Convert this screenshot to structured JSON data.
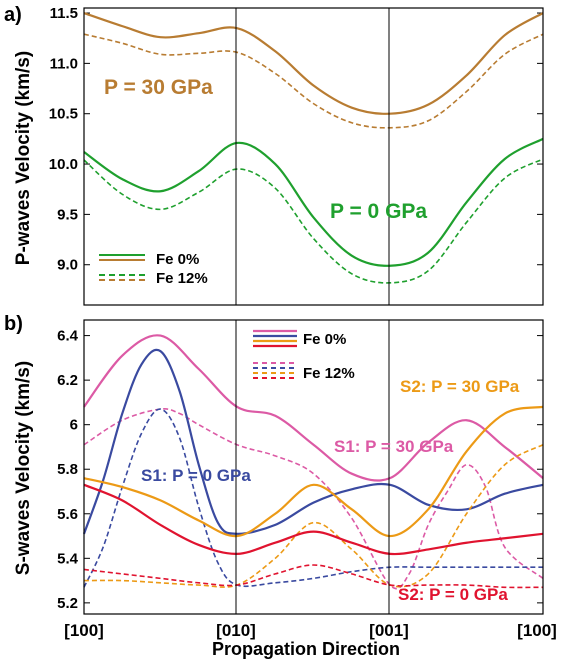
{
  "figure": {
    "x_tick_labels": [
      "[100]",
      "[010]",
      "[001]",
      "[100]"
    ],
    "xlabel": "Propagation Direction"
  },
  "chart_data": [
    {
      "type": "line",
      "panel_label": "a)",
      "title": "",
      "xlabel": "Propagation Direction",
      "ylabel": "P-waves Velocity (km/s)",
      "x_categories": [
        "[100]",
        "[010]",
        "[001]",
        "[100]"
      ],
      "xlim": [
        0,
        3
      ],
      "ylim": [
        8.6,
        11.55
      ],
      "yticks": [
        9.0,
        9.5,
        10.0,
        10.5,
        11.0,
        11.5
      ],
      "grid": false,
      "legend": {
        "position": "bottom-left",
        "entries": [
          {
            "label": "Fe 0%",
            "style": "solid"
          },
          {
            "label": "Fe 12%",
            "style": "dashed"
          }
        ]
      },
      "annotations": [
        {
          "text": "P = 30 GPa",
          "color": "#b87c32"
        },
        {
          "text": "P = 0 GPa",
          "color": "#1fa02e"
        }
      ],
      "series": [
        {
          "color": "#b87c32",
          "style": "solid",
          "x": [
            0,
            0.25,
            0.5,
            0.75,
            1.0,
            1.25,
            1.5,
            1.75,
            2.0,
            2.25,
            2.5,
            2.75,
            3.0
          ],
          "y": [
            11.5,
            11.37,
            11.26,
            11.3,
            11.35,
            11.12,
            10.78,
            10.56,
            10.5,
            10.59,
            10.88,
            11.28,
            11.5
          ]
        },
        {
          "color": "#b87c32",
          "style": "dashed",
          "x": [
            0,
            0.25,
            0.5,
            0.75,
            1.0,
            1.25,
            1.5,
            1.75,
            2.0,
            2.25,
            2.5,
            2.75,
            3.0
          ],
          "y": [
            11.29,
            11.2,
            11.09,
            11.1,
            11.11,
            10.9,
            10.6,
            10.41,
            10.36,
            10.43,
            10.72,
            11.09,
            11.29
          ]
        },
        {
          "color": "#1fa02e",
          "style": "solid",
          "x": [
            0,
            0.25,
            0.5,
            0.75,
            1.0,
            1.25,
            1.5,
            1.75,
            2.0,
            2.25,
            2.5,
            2.75,
            3.0
          ],
          "y": [
            10.12,
            9.85,
            9.73,
            9.93,
            10.21,
            10.0,
            9.47,
            9.09,
            8.99,
            9.12,
            9.62,
            10.05,
            10.25
          ]
        },
        {
          "color": "#1fa02e",
          "style": "dashed",
          "x": [
            0,
            0.25,
            0.5,
            0.75,
            1.0,
            1.25,
            1.5,
            1.75,
            2.0,
            2.25,
            2.5,
            2.75,
            3.0
          ],
          "y": [
            10.04,
            9.7,
            9.55,
            9.72,
            9.95,
            9.76,
            9.26,
            8.91,
            8.82,
            8.94,
            9.42,
            9.86,
            10.05
          ]
        }
      ]
    },
    {
      "type": "line",
      "panel_label": "b)",
      "title": "",
      "xlabel": "Propagation Direction",
      "ylabel": "S-waves Velocity (km/s)",
      "x_categories": [
        "[100]",
        "[010]",
        "[001]",
        "[100]"
      ],
      "xlim": [
        0,
        3
      ],
      "ylim": [
        5.15,
        6.47
      ],
      "yticks": [
        5.2,
        5.4,
        5.6,
        5.8,
        6,
        6.2,
        6.4
      ],
      "ytick_labels": [
        "5.2",
        "5.4",
        "5.6",
        "5.8",
        "6",
        "6.2",
        "6.4"
      ],
      "grid": false,
      "legend": {
        "position": "top-center",
        "entries": [
          {
            "label": "Fe 0%",
            "style": "solid"
          },
          {
            "label": "Fe 12%",
            "style": "dashed"
          }
        ]
      },
      "annotations": [
        {
          "text": "S1: P = 0 GPa",
          "color": "#3a4aa0"
        },
        {
          "text": "S1: P = 30 GPa",
          "color": "#dc5aa5"
        },
        {
          "text": "S2: P = 30 GPa",
          "color": "#ec9a16"
        },
        {
          "text": "S2: P = 0 GPa",
          "color": "#e0132f"
        }
      ],
      "series": [
        {
          "color": "#dc5aa5",
          "style": "solid",
          "x": [
            0,
            0.25,
            0.5,
            0.75,
            1.0,
            1.25,
            1.5,
            1.75,
            2.0,
            2.25,
            2.5,
            2.75,
            3.0
          ],
          "y": [
            6.08,
            6.31,
            6.4,
            6.25,
            6.08,
            6.04,
            5.91,
            5.78,
            5.76,
            5.92,
            6.02,
            5.9,
            5.76
          ]
        },
        {
          "color": "#dc5aa5",
          "style": "dashed",
          "x": [
            0,
            0.25,
            0.5,
            0.625,
            0.75,
            1.0,
            1.25,
            1.5,
            1.75,
            2.0,
            2.125,
            2.25,
            2.375,
            2.5,
            2.625,
            2.75,
            3.0
          ],
          "y": [
            5.91,
            6.02,
            6.07,
            6.05,
            6.0,
            5.91,
            5.86,
            5.78,
            5.58,
            5.28,
            5.33,
            5.55,
            5.7,
            5.82,
            5.72,
            5.45,
            5.31
          ]
        },
        {
          "color": "#3a4aa0",
          "style": "solid",
          "x": [
            0,
            0.125,
            0.25,
            0.375,
            0.5,
            0.625,
            0.75,
            0.875,
            1.0,
            1.25,
            1.5,
            1.75,
            2.0,
            2.25,
            2.5,
            2.75,
            3.0
          ],
          "y": [
            5.51,
            5.75,
            6.05,
            6.27,
            6.33,
            6.15,
            5.82,
            5.56,
            5.51,
            5.55,
            5.65,
            5.71,
            5.73,
            5.64,
            5.62,
            5.69,
            5.73
          ]
        },
        {
          "color": "#3a4aa0",
          "style": "dashed",
          "x": [
            0,
            0.125,
            0.25,
            0.375,
            0.5,
            0.625,
            0.75,
            0.875,
            1.0,
            1.25,
            1.5,
            1.75,
            2.0,
            2.25,
            2.5,
            2.75,
            3.0
          ],
          "y": [
            5.27,
            5.45,
            5.72,
            5.96,
            6.07,
            5.94,
            5.63,
            5.38,
            5.28,
            5.29,
            5.31,
            5.34,
            5.36,
            5.36,
            5.36,
            5.36,
            5.36
          ]
        },
        {
          "color": "#ec9a16",
          "style": "solid",
          "x": [
            0,
            0.25,
            0.5,
            0.75,
            1.0,
            1.25,
            1.5,
            1.75,
            2.0,
            2.25,
            2.5,
            2.75,
            3.0
          ],
          "y": [
            5.76,
            5.72,
            5.66,
            5.57,
            5.5,
            5.6,
            5.73,
            5.62,
            5.5,
            5.62,
            5.88,
            6.05,
            6.08
          ]
        },
        {
          "color": "#ec9a16",
          "style": "dashed",
          "x": [
            0,
            0.25,
            0.5,
            0.75,
            1.0,
            1.25,
            1.5,
            1.75,
            2.0,
            2.25,
            2.5,
            2.75,
            3.0
          ],
          "y": [
            5.3,
            5.3,
            5.29,
            5.28,
            5.28,
            5.4,
            5.56,
            5.44,
            5.28,
            5.33,
            5.6,
            5.82,
            5.91
          ]
        },
        {
          "color": "#e0132f",
          "style": "solid",
          "x": [
            0,
            0.25,
            0.5,
            0.75,
            1.0,
            1.25,
            1.5,
            1.75,
            2.0,
            2.25,
            2.5,
            2.75,
            3.0
          ],
          "y": [
            5.73,
            5.66,
            5.55,
            5.46,
            5.42,
            5.47,
            5.52,
            5.47,
            5.42,
            5.44,
            5.47,
            5.49,
            5.51
          ]
        },
        {
          "color": "#e0132f",
          "style": "dashed",
          "x": [
            0,
            0.25,
            0.5,
            0.75,
            1.0,
            1.25,
            1.5,
            1.75,
            2.0,
            2.25,
            2.5,
            2.75,
            3.0
          ],
          "y": [
            5.35,
            5.33,
            5.31,
            5.29,
            5.28,
            5.33,
            5.37,
            5.33,
            5.28,
            5.28,
            5.28,
            5.27,
            5.27
          ]
        }
      ]
    }
  ]
}
